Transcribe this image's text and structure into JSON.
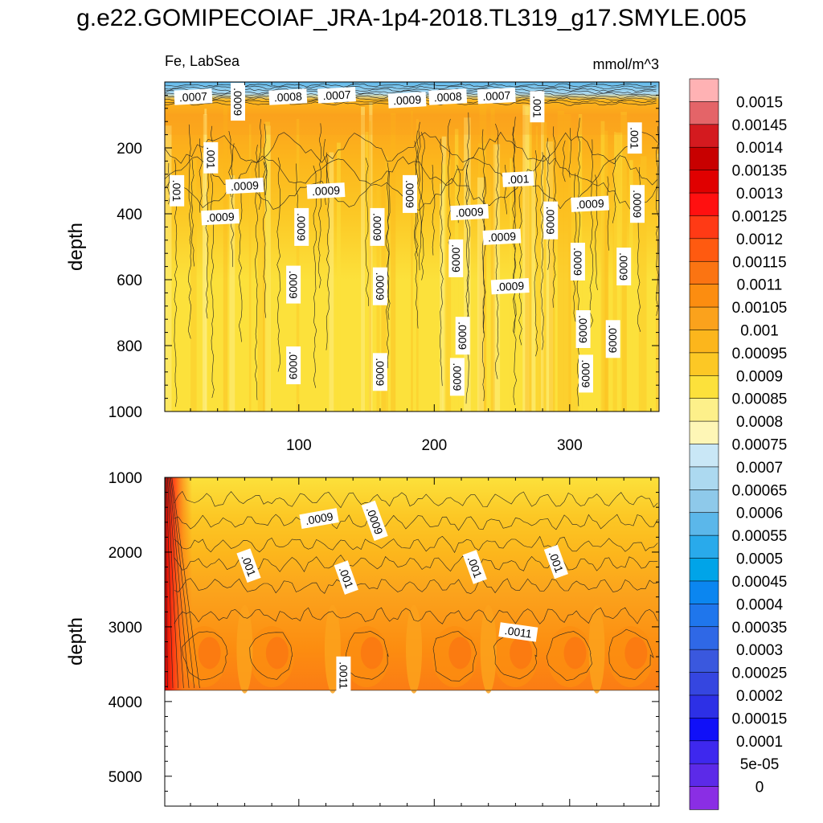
{
  "figure_title": "g.e22.GOMIPECOIAF_JRA-1p4-2018.TL319_g17.SMYLE.005",
  "panel_left_label": "Fe, LabSea",
  "panel_right_label": "mmol/m^3",
  "ylabel": "depth",
  "chart_data": [
    {
      "type": "heatmap",
      "subtype": "filled-contour",
      "panel": "upper",
      "title": "",
      "ylabel": "depth",
      "xlim": [
        1,
        366
      ],
      "ylim": [
        1000,
        0
      ],
      "x_ticks": [
        100,
        200,
        300
      ],
      "y_ticks": [
        200,
        400,
        600,
        800,
        1000
      ],
      "contour_labels": [
        {
          "text": ".0007",
          "x": 22,
          "y": 45
        },
        {
          "text": ".0009",
          "x": 55,
          "y": 60
        },
        {
          "text": ".0008",
          "x": 92,
          "y": 45
        },
        {
          "text": ".0007",
          "x": 128,
          "y": 40
        },
        {
          "text": ".0009",
          "x": 180,
          "y": 55
        },
        {
          "text": ".0008",
          "x": 210,
          "y": 45
        },
        {
          "text": ".0007",
          "x": 246,
          "y": 42
        },
        {
          "text": ".001",
          "x": 276,
          "y": 75
        },
        {
          "text": ".001",
          "x": 35,
          "y": 230
        },
        {
          "text": ".001",
          "x": 10,
          "y": 330
        },
        {
          "text": ".0009",
          "x": 60,
          "y": 315
        },
        {
          "text": ".0009",
          "x": 120,
          "y": 330
        },
        {
          "text": ".0009",
          "x": 182,
          "y": 340
        },
        {
          "text": ".001",
          "x": 262,
          "y": 295
        },
        {
          "text": ".001",
          "x": 348,
          "y": 170
        },
        {
          "text": ".0009",
          "x": 42,
          "y": 410
        },
        {
          "text": ".0009",
          "x": 102,
          "y": 440
        },
        {
          "text": ".0009",
          "x": 158,
          "y": 440
        },
        {
          "text": ".0009",
          "x": 226,
          "y": 395
        },
        {
          "text": ".0009",
          "x": 250,
          "y": 470
        },
        {
          "text": ".0009",
          "x": 286,
          "y": 420
        },
        {
          "text": ".0009",
          "x": 315,
          "y": 370
        },
        {
          "text": ".0009",
          "x": 350,
          "y": 370
        },
        {
          "text": ".0009",
          "x": 216,
          "y": 535
        },
        {
          "text": ".0009",
          "x": 306,
          "y": 545
        },
        {
          "text": ".0009",
          "x": 340,
          "y": 560
        },
        {
          "text": ".0009",
          "x": 256,
          "y": 620
        },
        {
          "text": ".0009",
          "x": 96,
          "y": 615
        },
        {
          "text": ".0009",
          "x": 160,
          "y": 620
        },
        {
          "text": ".0009",
          "x": 221,
          "y": 770
        },
        {
          "text": ".0009",
          "x": 310,
          "y": 750
        },
        {
          "text": ".0009",
          "x": 332,
          "y": 780
        },
        {
          "text": ".0009",
          "x": 96,
          "y": 860
        },
        {
          "text": ".0009",
          "x": 160,
          "y": 880
        },
        {
          "text": ".0009",
          "x": 217,
          "y": 895
        },
        {
          "text": ".0009",
          "x": 312,
          "y": 885
        }
      ]
    },
    {
      "type": "heatmap",
      "subtype": "filled-contour",
      "panel": "lower",
      "title": "",
      "ylabel": "depth",
      "xlim": [
        1,
        366
      ],
      "ylim": [
        5400,
        1000
      ],
      "x_ticks": [
        100,
        200,
        300
      ],
      "y_ticks": [
        1000,
        2000,
        3000,
        4000,
        5000
      ],
      "data_bottom_depth": 3850,
      "contour_labels": [
        {
          "text": ".0009",
          "x": 115,
          "y": 1550
        },
        {
          "text": ".0009",
          "x": 156,
          "y": 1580
        },
        {
          "text": ".001",
          "x": 63,
          "y": 2180
        },
        {
          "text": ".001",
          "x": 135,
          "y": 2340
        },
        {
          "text": ".001",
          "x": 230,
          "y": 2200
        },
        {
          "text": ".001",
          "x": 290,
          "y": 2130
        },
        {
          "text": ".0011",
          "x": 262,
          "y": 3070
        },
        {
          "text": ".0011",
          "x": 133,
          "y": 3650
        }
      ]
    }
  ],
  "colorbar": {
    "labels": [
      "0.0015",
      "0.00145",
      "0.0014",
      "0.00135",
      "0.0013",
      "0.00125",
      "0.0012",
      "0.00115",
      "0.0011",
      "0.00105",
      "0.001",
      "0.00095",
      "0.0009",
      "0.00085",
      "0.0008",
      "0.00075",
      "0.0007",
      "0.00065",
      "0.0006",
      "0.00055",
      "0.0005",
      "0.00045",
      "0.0004",
      "0.00035",
      "0.0003",
      "0.00025",
      "0.0002",
      "0.00015",
      "0.0001",
      "5e-05",
      "0"
    ],
    "colors": [
      "#ffb2b4",
      "#e46468",
      "#d41a1f",
      "#c80000",
      "#e00000",
      "#ff1010",
      "#ff3a15",
      "#ff5a10",
      "#fb7412",
      "#fc8d10",
      "#fba21c",
      "#fcb61c",
      "#fcc825",
      "#fce13b",
      "#fdf08a",
      "#fef6b6",
      "#c9e7f6",
      "#acd9f0",
      "#8ec9ea",
      "#5bb7ea",
      "#29aaeb",
      "#00a4e8",
      "#0b86f0",
      "#1f76ec",
      "#2f68e6",
      "#3a58de",
      "#3546e0",
      "#2d30e6",
      "#1010f8",
      "#3e28ee",
      "#5c2ae8",
      "#8a2ee4"
    ]
  }
}
